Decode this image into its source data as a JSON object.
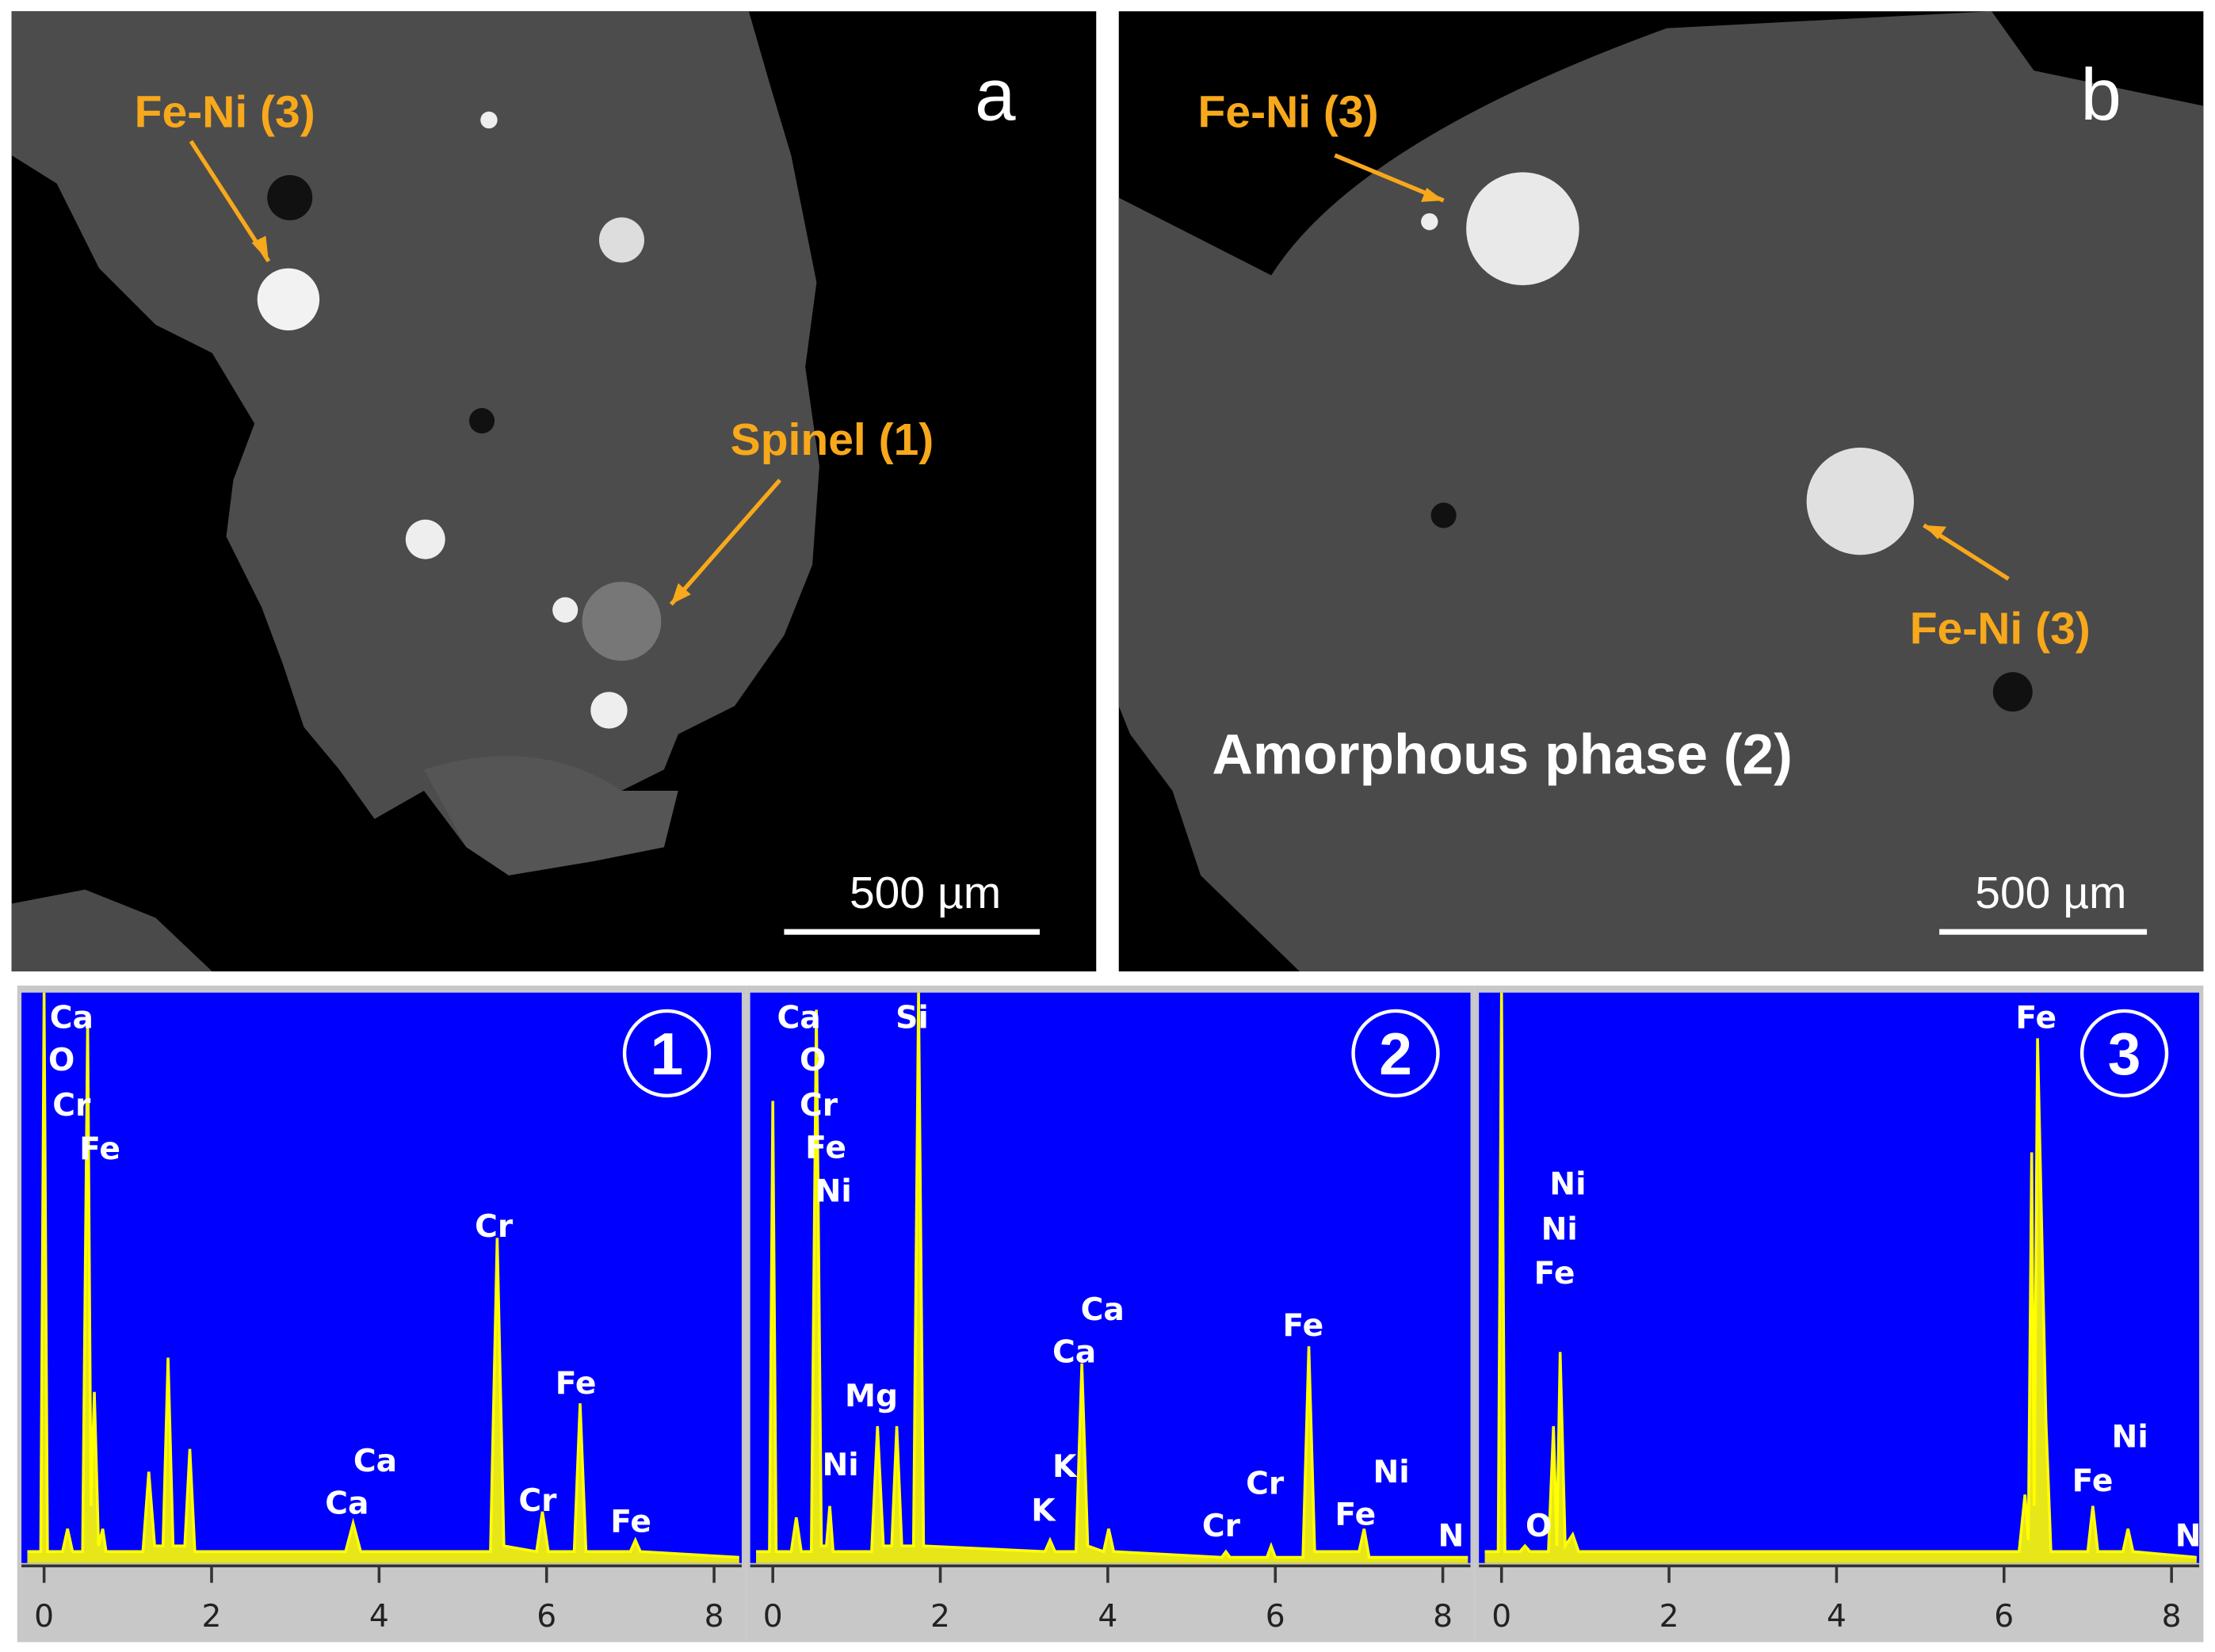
{
  "panels": [
    {
      "label": "a",
      "annotations": [
        "Fe-Ni (3)",
        "Spinel (1)"
      ],
      "scale_bar": "500 µm"
    },
    {
      "label": "b",
      "annotations": [
        "Fe-Ni (3)",
        "Fe-Ni (3)",
        "Amorphous phase (2)"
      ],
      "scale_bar": "500 µm"
    }
  ],
  "chart_data": [
    {
      "type": "line",
      "title": "1",
      "color": "#ffff00",
      "background": "#0000ff",
      "x": [
        -0.2,
        -0.04,
        0,
        0.04,
        0.22,
        0.28,
        0.34,
        0.46,
        0.52,
        0.56,
        0.6,
        0.65,
        0.7,
        0.74,
        1.18,
        1.25,
        1.32,
        1.42,
        1.48,
        1.54,
        1.68,
        1.74,
        1.8,
        3.6,
        3.69,
        3.78,
        5.33,
        5.41,
        5.49,
        5.88,
        5.95,
        6.02,
        6.33,
        6.4,
        6.47,
        7.0,
        7.06,
        7.12,
        8.3
      ],
      "values": [
        2,
        2,
        100,
        2,
        2,
        6,
        2,
        2,
        95,
        10,
        30,
        3,
        6,
        2,
        2,
        16,
        3,
        3,
        36,
        3,
        3,
        20,
        2,
        2,
        7,
        2,
        2,
        57,
        3,
        2,
        9,
        2,
        2,
        28,
        2,
        2,
        4,
        2,
        1
      ],
      "peak_labels": [
        "Ca",
        "O",
        "Cr",
        "Fe",
        "Cr",
        "Ca",
        "Ca",
        "Cr",
        "Fe",
        "Fe"
      ],
      "xlim": [
        -0.27,
        8.33
      ],
      "ylim": [
        0,
        100
      ],
      "xticks": [
        0,
        2,
        4,
        6,
        8
      ]
    },
    {
      "type": "line",
      "title": "2",
      "color": "#ffff00",
      "background": "#0000ff",
      "x": [
        -0.2,
        -0.04,
        0,
        0.04,
        0.22,
        0.28,
        0.34,
        0.46,
        0.52,
        0.58,
        0.64,
        0.68,
        0.72,
        1.18,
        1.25,
        1.32,
        1.42,
        1.48,
        1.54,
        1.68,
        1.74,
        1.8,
        3.25,
        3.31,
        3.37,
        3.62,
        3.69,
        3.76,
        3.95,
        4.01,
        4.07,
        5.36,
        5.41,
        5.46,
        5.9,
        5.95,
        6.0,
        6.33,
        6.4,
        6.47,
        7.0,
        7.06,
        7.12,
        8.3
      ],
      "values": [
        2,
        2,
        81,
        2,
        2,
        8,
        2,
        2,
        97,
        3,
        3,
        10,
        2,
        2,
        24,
        3,
        3,
        24,
        3,
        3,
        100,
        3,
        2,
        4,
        2,
        2,
        35,
        3,
        2,
        6,
        2,
        1,
        2,
        1,
        1,
        3,
        1,
        1,
        38,
        2,
        2,
        6,
        1,
        1
      ],
      "peak_labels": [
        "Ca",
        "O",
        "Cr",
        "Fe",
        "Ni",
        "Si",
        "Mg",
        "Ni",
        "Ca",
        "Ca",
        "K",
        "K",
        "Fe",
        "Cr",
        "Cr",
        "Fe",
        "Ni",
        "N"
      ],
      "xlim": [
        -0.27,
        8.33
      ],
      "ylim": [
        0,
        100
      ],
      "xticks": [
        0,
        2,
        4,
        6,
        8
      ]
    },
    {
      "type": "line",
      "title": "3",
      "color": "#ffff00",
      "background": "#0000ff",
      "x": [
        -0.2,
        -0.04,
        0,
        0.04,
        0.22,
        0.28,
        0.34,
        0.56,
        0.62,
        0.66,
        0.7,
        0.76,
        0.85,
        0.92,
        6.18,
        6.25,
        6.29,
        6.33,
        6.36,
        6.4,
        6.5,
        6.56,
        7.0,
        7.06,
        7.12,
        7.42,
        7.48,
        7.54,
        8.3
      ],
      "values": [
        2,
        2,
        100,
        2,
        2,
        3,
        2,
        2,
        24,
        3,
        37,
        3,
        5,
        2,
        2,
        12,
        4,
        72,
        10,
        92,
        25,
        2,
        2,
        10,
        2,
        2,
        6,
        2,
        1
      ],
      "peak_labels": [
        "Fe",
        "Ni",
        "Ni",
        "Fe",
        "Ni",
        "Fe",
        "N",
        "O"
      ],
      "xlim": [
        -0.27,
        8.33
      ],
      "ylim": [
        0,
        100
      ],
      "xticks": [
        0,
        2,
        4,
        6,
        8
      ]
    }
  ]
}
